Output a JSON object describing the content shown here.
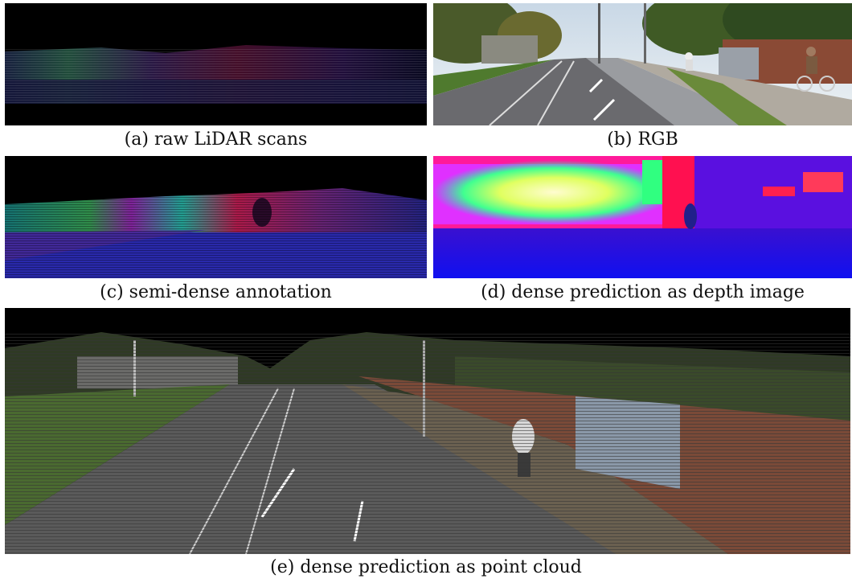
{
  "figure": {
    "panels": [
      {
        "id": "a",
        "caption": "(a) raw LiDAR scans"
      },
      {
        "id": "b",
        "caption": "(b) RGB"
      },
      {
        "id": "c",
        "caption": "(c) semi-dense annotation"
      },
      {
        "id": "d",
        "caption": "(d) dense prediction as depth image"
      },
      {
        "id": "e",
        "caption": "(e) dense prediction as point cloud"
      }
    ]
  }
}
